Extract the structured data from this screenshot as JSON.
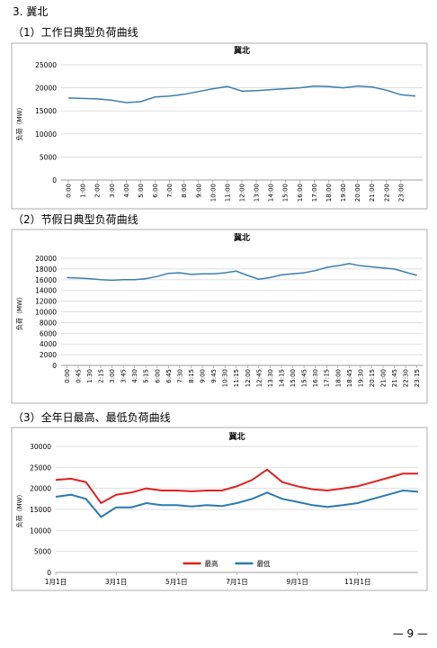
{
  "heading": "3. 冀北",
  "sections": [
    {
      "title": "（1）工作日典型负荷曲线"
    },
    {
      "title": "（2）节假日典型负荷曲线"
    },
    {
      "title": "（3）全年日最高、最低负荷曲线"
    }
  ],
  "chart_data": [
    {
      "type": "line",
      "title": "冀北",
      "y_label": "负荷（MW）",
      "color": "#3a7fb0",
      "grid": true,
      "categories": [
        "0:00",
        "1:00",
        "2:00",
        "3:00",
        "4:00",
        "5:00",
        "6:00",
        "7:00",
        "8:00",
        "9:00",
        "10:00",
        "11:00",
        "12:00",
        "13:00",
        "14:00",
        "15:00",
        "16:00",
        "17:00",
        "18:00",
        "19:00",
        "20:00",
        "21:00",
        "22:00",
        "23:00",
        null
      ],
      "values": [
        17800,
        17700,
        17600,
        17300,
        16800,
        17000,
        18000,
        18200,
        18600,
        19200,
        19800,
        20300,
        19300,
        19400,
        19600,
        19800,
        20000,
        20400,
        20300,
        20000,
        20400,
        20200,
        19500,
        18500,
        18200
      ],
      "ylim": [
        0,
        25000
      ],
      "yticks": [
        0,
        5000,
        10000,
        15000,
        20000,
        25000
      ]
    },
    {
      "type": "line",
      "title": "冀北",
      "y_label": "负荷（MW）",
      "color": "#3a7fb0",
      "grid": true,
      "categories": [
        "0:00",
        "0:45",
        "1:30",
        "2:15",
        "3:00",
        "3:45",
        "4:30",
        "5:15",
        "6:00",
        "6:45",
        "7:30",
        "8:15",
        "9:00",
        "9:45",
        "10:30",
        "11:15",
        "12:00",
        "12:45",
        "13:30",
        "14:15",
        "15:00",
        "15:45",
        "16:30",
        "17:15",
        "18:00",
        "18:45",
        "19:30",
        "20:15",
        "21:00",
        "21:45",
        "22:30",
        "23:15"
      ],
      "values": [
        16400,
        16300,
        16200,
        16000,
        15900,
        16000,
        16000,
        16200,
        16600,
        17200,
        17300,
        17000,
        17100,
        17100,
        17300,
        17600,
        16800,
        16100,
        16400,
        16900,
        17100,
        17300,
        17700,
        18300,
        18600,
        19000,
        18600,
        18400,
        18200,
        18000,
        17400,
        16800
      ],
      "ylim": [
        0,
        20000
      ],
      "yticks": [
        0,
        2000,
        4000,
        6000,
        8000,
        10000,
        12000,
        14000,
        16000,
        18000,
        20000
      ]
    },
    {
      "type": "line",
      "title": "冀北",
      "y_label": "负荷（MW）",
      "grid": true,
      "categories": [
        "1月1日",
        null,
        null,
        null,
        "3月1日",
        null,
        null,
        null,
        "5月1日",
        null,
        null,
        null,
        "7月1日",
        null,
        null,
        null,
        "9月1日",
        null,
        null,
        null,
        "11月1日",
        null,
        null,
        null,
        null
      ],
      "series": [
        {
          "name": "最高",
          "color": "#e02020",
          "values": [
            22000,
            22300,
            21500,
            16500,
            18500,
            19000,
            20000,
            19500,
            19500,
            19300,
            19500,
            19500,
            20500,
            22000,
            24500,
            21500,
            20500,
            19800,
            19500,
            20000,
            20500,
            21500,
            22500,
            23500,
            23500
          ]
        },
        {
          "name": "最低",
          "color": "#2a7ab0",
          "values": [
            18000,
            18500,
            17500,
            13200,
            15500,
            15500,
            16500,
            16000,
            16000,
            15700,
            16000,
            15800,
            16500,
            17500,
            19000,
            17500,
            16800,
            16000,
            15600,
            16000,
            16500,
            17500,
            18500,
            19500,
            19200
          ]
        }
      ],
      "ylim": [
        0,
        30000
      ],
      "yticks": [
        0,
        5000,
        10000,
        15000,
        20000,
        25000,
        30000
      ],
      "legend": "bottom"
    }
  ],
  "page_number": "— 9 —"
}
